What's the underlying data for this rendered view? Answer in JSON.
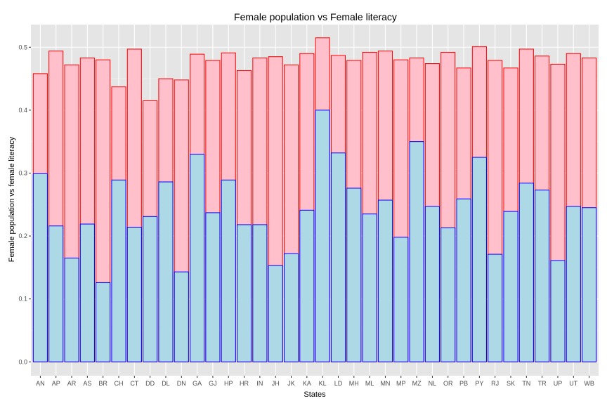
{
  "chart_data": {
    "type": "bar",
    "title": "Female population vs Female literacy",
    "xlabel": "States",
    "ylabel": "Female population vs female literacy",
    "ylim": [
      -0.022,
      0.536
    ],
    "yticks": [
      "0.0",
      "0.1",
      "0.2",
      "0.3",
      "0.4",
      "0.5"
    ],
    "grid": true,
    "bar_mode": "overlay",
    "categories": [
      "AN",
      "AP",
      "AR",
      "AS",
      "BR",
      "CH",
      "CT",
      "DD",
      "DL",
      "DN",
      "GA",
      "GJ",
      "HP",
      "HR",
      "IN",
      "JH",
      "JK",
      "KA",
      "KL",
      "LD",
      "MH",
      "ML",
      "MN",
      "MP",
      "MZ",
      "NL",
      "OR",
      "PB",
      "PY",
      "RJ",
      "SK",
      "TN",
      "TR",
      "UP",
      "UT",
      "WB"
    ],
    "series": [
      {
        "values": [
          0.458,
          0.494,
          0.472,
          0.483,
          0.48,
          0.437,
          0.497,
          0.415,
          0.45,
          0.448,
          0.489,
          0.479,
          0.491,
          0.463,
          0.483,
          0.485,
          0.472,
          0.49,
          0.515,
          0.487,
          0.479,
          0.492,
          0.494,
          0.48,
          0.483,
          0.474,
          0.492,
          0.467,
          0.501,
          0.479,
          0.467,
          0.497,
          0.486,
          0.473,
          0.49,
          0.483
        ],
        "fill": "#ffc0cb",
        "stroke": "#ff0000"
      },
      {
        "values": [
          0.299,
          0.216,
          0.165,
          0.219,
          0.126,
          0.289,
          0.214,
          0.231,
          0.286,
          0.143,
          0.33,
          0.237,
          0.289,
          0.218,
          0.218,
          0.153,
          0.172,
          0.241,
          0.4,
          0.332,
          0.276,
          0.235,
          0.257,
          0.198,
          0.35,
          0.247,
          0.213,
          0.259,
          0.325,
          0.171,
          0.239,
          0.284,
          0.273,
          0.161,
          0.247,
          0.245
        ],
        "fill": "#add8e6",
        "stroke": "#0000ff"
      }
    ],
    "colors": {
      "panel_background": "#e5e5e5",
      "grid_major": "#ffffff",
      "grid_minor": "#f2f2f2"
    }
  }
}
